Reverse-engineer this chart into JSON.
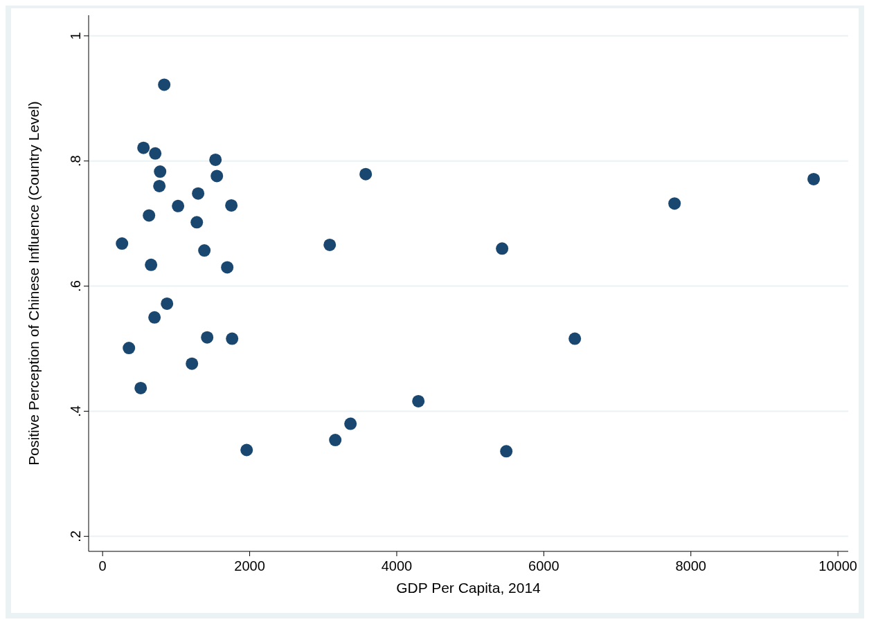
{
  "chart_data": {
    "type": "scatter",
    "xlabel": "GDP Per Capita, 2014",
    "ylabel": "Positive Perception of Chinese Influence (Country Level)",
    "x": [
      838,
      556,
      716,
      782,
      772,
      1535,
      1554,
      1026,
      1299,
      631,
      1281,
      1751,
      264,
      659,
      1384,
      1695,
      876,
      706,
      358,
      1761,
      1422,
      1215,
      518,
      1959,
      3089,
      3164,
      3371,
      3578,
      4294,
      5433,
      5490,
      6422,
      7778,
      9670
    ],
    "series": [
      {
        "color": "#1a476f",
        "values": [
          0.922,
          0.821,
          0.812,
          0.783,
          0.76,
          0.802,
          0.776,
          0.728,
          0.748,
          0.713,
          0.702,
          0.729,
          0.668,
          0.634,
          0.657,
          0.63,
          0.572,
          0.55,
          0.501,
          0.516,
          0.518,
          0.476,
          0.437,
          0.338,
          0.666,
          0.354,
          0.38,
          0.779,
          0.416,
          0.66,
          0.336,
          0.516,
          0.732,
          0.771
        ]
      }
    ],
    "xlim": [
      -190,
      10140
    ],
    "xticks": [
      0,
      2000,
      4000,
      6000,
      8000,
      10000
    ],
    "ylim": [
      0.176,
      1.033
    ],
    "yticks": [
      {
        "value": 0.2,
        "label": ".2"
      },
      {
        "value": 0.4,
        "label": ".4"
      },
      {
        "value": 0.6,
        "label": ".6"
      },
      {
        "value": 0.8,
        "label": ".8"
      },
      1
    ],
    "grid": "y",
    "marker": "circle"
  }
}
